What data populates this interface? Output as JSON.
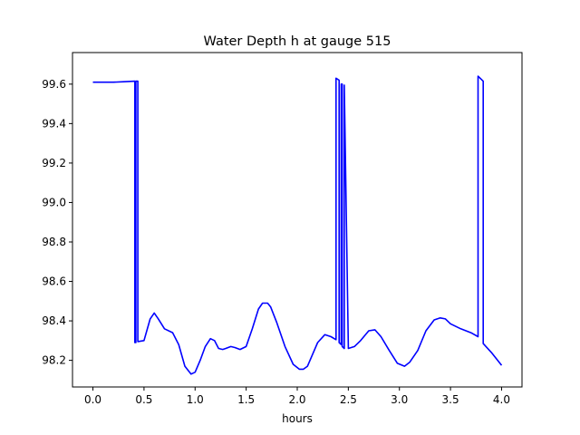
{
  "chart_data": {
    "type": "line",
    "title": "Water Depth h at gauge 515",
    "xlabel": "hours",
    "ylabel": "",
    "xlim": [
      -0.2,
      4.2
    ],
    "ylim": [
      98.065,
      99.76
    ],
    "xticks": [
      0.0,
      0.5,
      1.0,
      1.5,
      2.0,
      2.5,
      3.0,
      3.5,
      4.0
    ],
    "xtick_labels": [
      "0.0",
      "0.5",
      "1.0",
      "1.5",
      "2.0",
      "2.5",
      "3.0",
      "3.5",
      "4.0"
    ],
    "yticks": [
      98.2,
      98.4,
      98.6,
      98.8,
      99.0,
      99.2,
      99.4,
      99.6
    ],
    "ytick_labels": [
      "98.2",
      "98.4",
      "98.6",
      "98.8",
      "99.0",
      "99.2",
      "99.4",
      "99.6"
    ],
    "grid": false,
    "legend": "none",
    "series": [
      {
        "color": "#0000ff",
        "x": [
          0.0,
          0.1,
          0.2,
          0.3,
          0.41,
          0.41,
          0.42,
          0.42,
          0.44,
          0.44,
          0.5,
          0.56,
          0.6,
          0.64,
          0.7,
          0.78,
          0.84,
          0.9,
          0.96,
          1.0,
          1.05,
          1.1,
          1.15,
          1.19,
          1.23,
          1.27,
          1.3,
          1.35,
          1.39,
          1.44,
          1.5,
          1.56,
          1.62,
          1.66,
          1.71,
          1.74,
          1.8,
          1.88,
          1.96,
          2.02,
          2.06,
          2.1,
          2.2,
          2.27,
          2.33,
          2.38,
          2.38,
          2.41,
          2.41,
          2.43,
          2.43,
          2.44,
          2.44,
          2.46,
          2.46,
          2.5,
          2.56,
          2.62,
          2.7,
          2.76,
          2.82,
          2.9,
          2.98,
          3.05,
          3.1,
          3.18,
          3.26,
          3.34,
          3.4,
          3.45,
          3.5,
          3.6,
          3.7,
          3.77,
          3.77,
          3.82,
          3.82,
          3.9,
          4.0
        ],
        "y": [
          99.61,
          99.61,
          99.61,
          99.612,
          99.615,
          98.29,
          98.29,
          99.615,
          99.615,
          98.295,
          98.3,
          98.41,
          98.44,
          98.41,
          98.36,
          98.34,
          98.28,
          98.17,
          98.13,
          98.14,
          98.2,
          98.27,
          98.31,
          98.3,
          98.26,
          98.255,
          98.26,
          98.27,
          98.265,
          98.255,
          98.27,
          98.36,
          98.46,
          98.49,
          98.49,
          98.47,
          98.39,
          98.27,
          98.18,
          98.155,
          98.155,
          98.17,
          98.29,
          98.33,
          98.32,
          98.305,
          99.63,
          99.62,
          98.29,
          98.28,
          99.6,
          99.6,
          98.27,
          98.26,
          99.595,
          98.26,
          98.27,
          98.3,
          98.35,
          98.355,
          98.32,
          98.25,
          98.185,
          98.17,
          98.19,
          98.25,
          98.35,
          98.405,
          98.415,
          98.41,
          98.385,
          98.36,
          98.34,
          98.32,
          99.64,
          99.615,
          98.285,
          98.24,
          98.175
        ]
      }
    ]
  }
}
